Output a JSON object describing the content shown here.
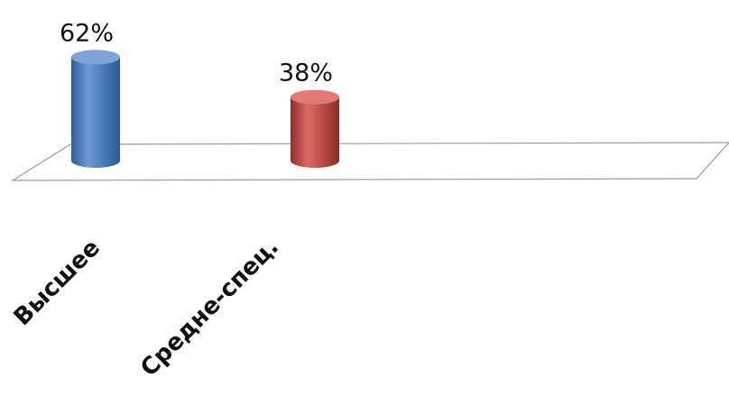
{
  "chart_data": {
    "type": "bar",
    "categories": [
      "Высшее",
      "Средне-спец."
    ],
    "values": [
      62,
      38
    ],
    "value_labels": [
      "62%",
      "38%"
    ],
    "unit": "%",
    "ylim": [
      0,
      70
    ],
    "grid": false,
    "legend": "none",
    "style": "3d-cylinder",
    "colors": [
      "#4F81BD",
      "#C0504D"
    ]
  }
}
